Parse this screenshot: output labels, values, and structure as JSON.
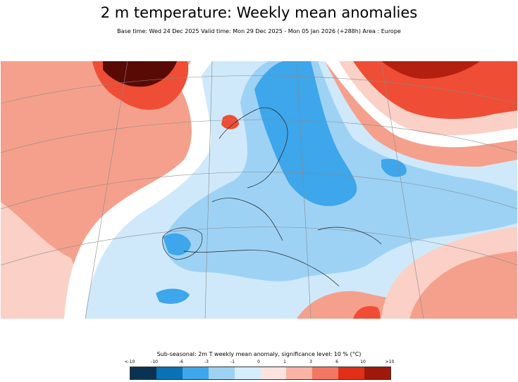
{
  "header": {
    "title": "2 m temperature: Weekly mean anomalies",
    "subtitle": "Base time: Wed 24 Dec 2025 Valid time: Mon 29 Dec 2025 - Mon 05 Jan 2026 (+288h) Area : Europe"
  },
  "map": {
    "region": "Europe",
    "colors": {
      "ocean_warm": "#f5a08c",
      "warm_light": "#fbd0c6",
      "warm_strong": "#ef4d35",
      "warm_very_strong": "#b3200f",
      "warm_extreme": "#5a0a04",
      "cold_light": "#cfe9fb",
      "cold_medium": "#9dd2f5",
      "cold_strong": "#3ea6ea",
      "cold_very_strong": "#1f7fc9",
      "neutral": "#ffffff"
    }
  },
  "legend": {
    "title": "Sub-seasonal: 2m T weekly mean anomaly, significance level: 10 % (°C)",
    "labels": [
      "<-10",
      "-10",
      "-6",
      "-3",
      "-1",
      "0",
      "1",
      "3",
      "6",
      "10",
      ">10"
    ],
    "colors": [
      "#0a3352",
      "#0a71b5",
      "#3ea6ea",
      "#9dd2f5",
      "#d6edfb",
      "#fbe4df",
      "#f9b3a5",
      "#f47763",
      "#e0301a",
      "#a01809",
      "#4c0602"
    ]
  }
}
